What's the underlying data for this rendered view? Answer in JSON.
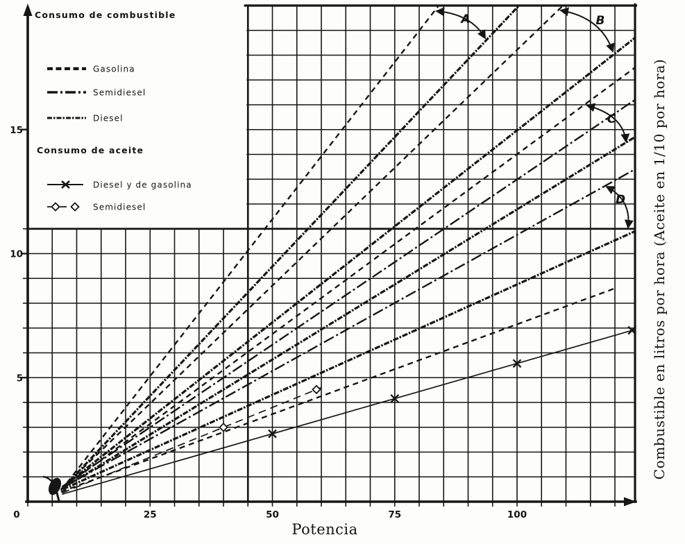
{
  "chart_data": {
    "type": "line",
    "xlabel": "Potencia",
    "ylabel_right": "Combustible en litros por hora (Aceite en 1/10 por hora)",
    "xlim": [
      0,
      125
    ],
    "ylim": [
      0,
      20
    ],
    "x_ticks": [
      "0",
      "25",
      "50",
      "75",
      "100"
    ],
    "y_ticks": [
      "5",
      "10",
      "15"
    ],
    "grid": {
      "x_step": 5,
      "y_step": 1,
      "on": true
    },
    "legend": {
      "fuel_heading": "Consumo de combustible",
      "oil_heading": "Consumo de aceite",
      "fuel_items": [
        {
          "label": "Gasolina",
          "style": "dashed-heavy"
        },
        {
          "label": "Semidiesel",
          "style": "dashdot"
        },
        {
          "label": "Diesel",
          "style": "solid-marked"
        }
      ],
      "oil_items": [
        {
          "label": "Diesel y de gasolina",
          "style": "oil-x"
        },
        {
          "label": "Semidiesel",
          "style": "oil-diamond"
        }
      ]
    },
    "series": [
      {
        "name": "range-A-upper-dashed",
        "style": "dashed",
        "points": [
          [
            6.8,
            0.45
          ],
          [
            84.0,
            20.0
          ]
        ]
      },
      {
        "name": "range-A-lower-solid",
        "style": "solid-marked",
        "points": [
          [
            7.2,
            0.55
          ],
          [
            100.4,
            20.0
          ]
        ]
      },
      {
        "name": "range-B-upper-dashed",
        "style": "dashed",
        "points": [
          [
            6.8,
            0.5
          ],
          [
            109.4,
            20.0
          ]
        ]
      },
      {
        "name": "range-B-lower-solid",
        "style": "solid-marked",
        "points": [
          [
            7.2,
            0.6
          ],
          [
            124.1,
            18.7
          ]
        ]
      },
      {
        "name": "range-C-upper-dashed",
        "style": "dashed",
        "points": [
          [
            6.8,
            0.5
          ],
          [
            124.1,
            17.5
          ]
        ]
      },
      {
        "name": "semidiesel-fuel",
        "style": "dashdot",
        "points": [
          [
            7.0,
            0.6
          ],
          [
            124.1,
            16.2
          ]
        ]
      },
      {
        "name": "range-C-lower-solid",
        "style": "solid-marked",
        "points": [
          [
            7.2,
            0.55
          ],
          [
            124.1,
            14.7
          ]
        ]
      },
      {
        "name": "range-D-upper-dashdot",
        "style": "dashdot",
        "points": [
          [
            7.0,
            0.55
          ],
          [
            124.1,
            13.4
          ]
        ]
      },
      {
        "name": "range-D-lower-solid",
        "style": "solid-marked",
        "points": [
          [
            7.2,
            0.5
          ],
          [
            124.1,
            10.9
          ]
        ]
      },
      {
        "name": "dashed-low",
        "style": "dashed",
        "points": [
          [
            6.8,
            0.4
          ],
          [
            120.0,
            8.6
          ]
        ]
      },
      {
        "name": "oil-semidiesel",
        "style": "oil-diamond",
        "points": [
          [
            7.0,
            0.35
          ],
          [
            60.0,
            4.6
          ]
        ],
        "markers_x": [
          40,
          59
        ]
      },
      {
        "name": "oil-diesel-gasolina",
        "style": "oil-x",
        "points": [
          [
            7.0,
            0.3
          ],
          [
            124.3,
            6.95
          ]
        ],
        "markers_x": [
          50,
          75,
          100,
          123.5
        ]
      }
    ],
    "annotations": [
      {
        "label": "A"
      },
      {
        "label": "B"
      },
      {
        "label": "C"
      },
      {
        "label": "D"
      }
    ],
    "ink_color": "#161616"
  }
}
